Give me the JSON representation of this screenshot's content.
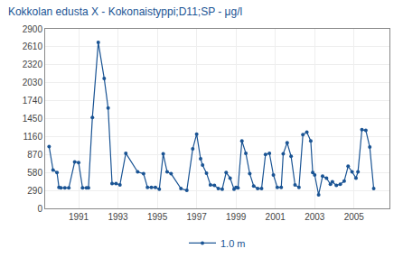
{
  "chart_data": {
    "type": "line",
    "title": "Kokkolan edusta X - Kokonaistyppi;D11;SP - μg/l",
    "x": [
      1989.5,
      1989.7,
      1989.9,
      1990.0,
      1990.1,
      1990.3,
      1990.5,
      1990.8,
      1991.0,
      1991.2,
      1991.4,
      1991.5,
      1991.7,
      1992.0,
      1992.3,
      1992.5,
      1992.7,
      1992.9,
      1993.1,
      1993.4,
      1994.0,
      1994.3,
      1994.5,
      1994.7,
      1994.9,
      1995.1,
      1995.3,
      1995.5,
      1995.7,
      1996.2,
      1996.5,
      1996.8,
      1997.0,
      1997.2,
      1997.3,
      1997.5,
      1997.7,
      1997.9,
      1998.1,
      1998.3,
      1998.5,
      1998.7,
      1998.9,
      1999.0,
      1999.1,
      1999.3,
      1999.5,
      1999.7,
      1999.9,
      2000.1,
      2000.3,
      2000.5,
      2000.7,
      2000.9,
      2001.1,
      2001.3,
      2001.4,
      2001.6,
      2001.8,
      2002.0,
      2002.2,
      2002.4,
      2002.6,
      2002.8,
      2002.9,
      2003.0,
      2003.2,
      2003.4,
      2003.6,
      2003.8,
      2003.9,
      2004.1,
      2004.3,
      2004.5,
      2004.7,
      2004.9,
      2005.1,
      2005.2,
      2005.4,
      2005.6,
      2005.8,
      2006.0
    ],
    "series": [
      {
        "name": "1.0 m",
        "color": "#1a5494",
        "marker": "circle",
        "values": [
          1000,
          620,
          580,
          340,
          330,
          330,
          330,
          750,
          740,
          330,
          330,
          330,
          1470,
          2680,
          2100,
          1620,
          400,
          400,
          380,
          890,
          590,
          560,
          340,
          340,
          340,
          310,
          880,
          590,
          560,
          320,
          290,
          960,
          1200,
          800,
          700,
          570,
          380,
          370,
          320,
          310,
          580,
          490,
          310,
          340,
          330,
          1090,
          890,
          560,
          360,
          320,
          320,
          870,
          890,
          540,
          340,
          340,
          880,
          1060,
          840,
          380,
          340,
          1190,
          1230,
          1090,
          580,
          540,
          220,
          520,
          490,
          390,
          430,
          370,
          390,
          440,
          680,
          590,
          490,
          590,
          1270,
          1260,
          990,
          320
        ]
      }
    ],
    "xlim": [
      1989.3,
      2006.8
    ],
    "xticks": [
      1991,
      1993,
      1995,
      1997,
      1999,
      2001,
      2003,
      2005
    ],
    "ylim": [
      0,
      2900
    ],
    "yticks": [
      0,
      290,
      580,
      870,
      1160,
      1450,
      1740,
      2030,
      2320,
      2610,
      2900
    ],
    "grid": true,
    "legend": "bottom"
  }
}
